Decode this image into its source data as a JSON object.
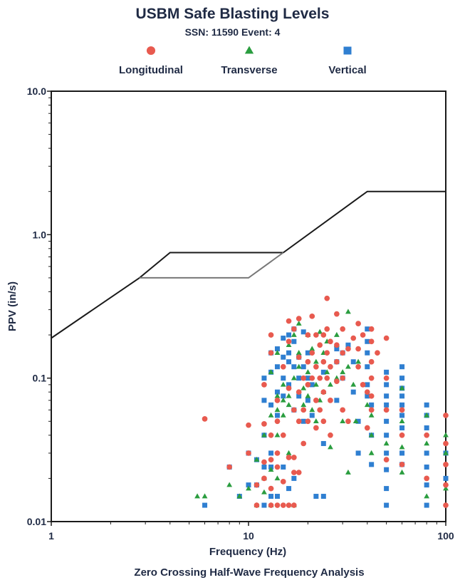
{
  "chart_data": {
    "type": "scatter",
    "title": "USBM Safe Blasting Levels",
    "subtitle": "SSN: 11590 Event: 4",
    "xlabel": "Frequency (Hz)",
    "ylabel": "PPV (in/s)",
    "footer": "Zero Crossing Half-Wave Frequency Analysis",
    "x_scale": "log",
    "y_scale": "log",
    "xlim": [
      1,
      100
    ],
    "ylim": [
      0.01,
      10.0
    ],
    "x_ticks": [
      "1",
      "10",
      "100"
    ],
    "y_ticks": [
      "0.01",
      "0.1",
      "1.0",
      "10.0"
    ],
    "grid": false,
    "legend_position": "top",
    "colors": {
      "longitudinal": "#e85a4f",
      "transverse": "#2a9d3f",
      "vertical": "#2f7fd1",
      "axis": "#1a1a1a",
      "text": "#1f2a44"
    },
    "limit_curves": [
      {
        "points": [
          [
            1,
            0.19
          ],
          [
            2.8,
            0.5
          ],
          [
            4,
            0.75
          ],
          [
            15,
            0.75
          ],
          [
            40,
            2.0
          ],
          [
            100,
            2.0
          ]
        ],
        "color": "#1a1a1a"
      },
      {
        "points": [
          [
            2.8,
            0.5
          ],
          [
            10,
            0.5
          ],
          [
            15,
            0.75
          ]
        ],
        "color": "#777777"
      }
    ],
    "series": [
      {
        "name": "Longitudinal",
        "marker": "circle",
        "color": "#e85a4f",
        "points": [
          [
            6,
            0.052
          ],
          [
            8,
            0.024
          ],
          [
            10,
            0.047
          ],
          [
            10,
            0.03
          ],
          [
            11,
            0.018
          ],
          [
            11,
            0.013
          ],
          [
            12,
            0.09
          ],
          [
            12,
            0.048
          ],
          [
            12,
            0.026
          ],
          [
            12,
            0.02
          ],
          [
            13,
            0.2
          ],
          [
            13,
            0.15
          ],
          [
            13,
            0.04
          ],
          [
            13,
            0.027
          ],
          [
            13,
            0.017
          ],
          [
            13,
            0.013
          ],
          [
            14,
            0.07
          ],
          [
            14,
            0.05
          ],
          [
            14,
            0.03
          ],
          [
            14,
            0.024
          ],
          [
            14,
            0.013
          ],
          [
            15,
            0.12
          ],
          [
            15,
            0.04
          ],
          [
            15,
            0.019
          ],
          [
            15,
            0.013
          ],
          [
            16,
            0.25
          ],
          [
            16,
            0.18
          ],
          [
            16,
            0.085
          ],
          [
            16,
            0.028
          ],
          [
            16,
            0.013
          ],
          [
            17,
            0.22
          ],
          [
            17,
            0.06
          ],
          [
            17,
            0.028
          ],
          [
            17,
            0.022
          ],
          [
            17,
            0.013
          ],
          [
            18,
            0.26
          ],
          [
            18,
            0.14
          ],
          [
            18,
            0.08
          ],
          [
            18,
            0.05
          ],
          [
            18,
            0.022
          ],
          [
            19,
            0.1
          ],
          [
            19,
            0.06
          ],
          [
            19,
            0.035
          ],
          [
            20,
            0.2
          ],
          [
            20,
            0.13
          ],
          [
            20,
            0.09
          ],
          [
            20,
            0.05
          ],
          [
            21,
            0.27
          ],
          [
            21,
            0.15
          ],
          [
            21,
            0.1
          ],
          [
            22,
            0.2
          ],
          [
            22,
            0.12
          ],
          [
            22,
            0.07
          ],
          [
            22,
            0.045
          ],
          [
            23,
            0.17
          ],
          [
            23,
            0.1
          ],
          [
            23,
            0.06
          ],
          [
            24,
            0.2
          ],
          [
            24,
            0.13
          ],
          [
            24,
            0.08
          ],
          [
            24,
            0.05
          ],
          [
            25,
            0.36
          ],
          [
            25,
            0.22
          ],
          [
            25,
            0.15
          ],
          [
            25,
            0.1
          ],
          [
            26,
            0.18
          ],
          [
            26,
            0.12
          ],
          [
            26,
            0.07
          ],
          [
            26,
            0.04
          ],
          [
            28,
            0.28
          ],
          [
            28,
            0.17
          ],
          [
            28,
            0.13
          ],
          [
            28,
            0.095
          ],
          [
            30,
            0.22
          ],
          [
            30,
            0.15
          ],
          [
            30,
            0.1
          ],
          [
            30,
            0.06
          ],
          [
            32,
            0.16
          ],
          [
            32,
            0.05
          ],
          [
            34,
            0.19
          ],
          [
            36,
            0.24
          ],
          [
            36,
            0.16
          ],
          [
            36,
            0.12
          ],
          [
            38,
            0.2
          ],
          [
            38,
            0.09
          ],
          [
            40,
            0.08
          ],
          [
            40,
            0.045
          ],
          [
            42,
            0.22
          ],
          [
            42,
            0.18
          ],
          [
            42,
            0.13
          ],
          [
            42,
            0.1
          ],
          [
            42,
            0.075
          ],
          [
            42,
            0.06
          ],
          [
            45,
            0.15
          ],
          [
            50,
            0.19
          ],
          [
            50,
            0.1
          ],
          [
            50,
            0.06
          ],
          [
            50,
            0.027
          ],
          [
            60,
            0.06
          ],
          [
            60,
            0.04
          ],
          [
            60,
            0.025
          ],
          [
            80,
            0.04
          ],
          [
            80,
            0.02
          ],
          [
            100,
            0.055
          ],
          [
            100,
            0.035
          ],
          [
            100,
            0.025
          ],
          [
            100,
            0.018
          ],
          [
            100,
            0.013
          ]
        ]
      },
      {
        "name": "Transverse",
        "marker": "triangle",
        "color": "#2a9d3f",
        "points": [
          [
            5.5,
            0.015
          ],
          [
            6,
            0.015
          ],
          [
            8,
            0.018
          ],
          [
            9,
            0.015
          ],
          [
            10,
            0.017
          ],
          [
            11,
            0.013
          ],
          [
            11,
            0.027
          ],
          [
            12,
            0.04
          ],
          [
            12,
            0.02
          ],
          [
            12,
            0.016
          ],
          [
            13,
            0.11
          ],
          [
            13,
            0.055
          ],
          [
            13,
            0.023
          ],
          [
            13,
            0.013
          ],
          [
            14,
            0.15
          ],
          [
            14,
            0.075
          ],
          [
            14,
            0.06
          ],
          [
            14,
            0.04
          ],
          [
            14,
            0.02
          ],
          [
            15,
            0.09
          ],
          [
            15,
            0.07
          ],
          [
            15,
            0.055
          ],
          [
            16,
            0.17
          ],
          [
            16,
            0.075
          ],
          [
            16,
            0.065
          ],
          [
            16,
            0.03
          ],
          [
            17,
            0.2
          ],
          [
            17,
            0.1
          ],
          [
            17,
            0.013
          ],
          [
            18,
            0.24
          ],
          [
            18,
            0.15
          ],
          [
            18,
            0.12
          ],
          [
            19,
            0.085
          ],
          [
            19,
            0.065
          ],
          [
            20,
            0.2
          ],
          [
            20,
            0.11
          ],
          [
            20,
            0.075
          ],
          [
            21,
            0.16
          ],
          [
            21,
            0.06
          ],
          [
            22,
            0.13
          ],
          [
            22,
            0.09
          ],
          [
            22,
            0.05
          ],
          [
            23,
            0.21
          ],
          [
            23,
            0.07
          ],
          [
            24,
            0.15
          ],
          [
            24,
            0.08
          ],
          [
            25,
            0.18
          ],
          [
            25,
            0.11
          ],
          [
            26,
            0.09
          ],
          [
            26,
            0.033
          ],
          [
            28,
            0.2
          ],
          [
            28,
            0.17
          ],
          [
            28,
            0.1
          ],
          [
            30,
            0.11
          ],
          [
            30,
            0.05
          ],
          [
            32,
            0.29
          ],
          [
            32,
            0.12
          ],
          [
            32,
            0.022
          ],
          [
            34,
            0.09
          ],
          [
            35,
            0.05
          ],
          [
            36,
            0.13
          ],
          [
            40,
            0.065
          ],
          [
            42,
            0.055
          ],
          [
            42,
            0.04
          ],
          [
            42,
            0.03
          ],
          [
            50,
            0.035
          ],
          [
            60,
            0.085
          ],
          [
            60,
            0.05
          ],
          [
            60,
            0.033
          ],
          [
            60,
            0.022
          ],
          [
            80,
            0.055
          ],
          [
            80,
            0.035
          ],
          [
            80,
            0.015
          ],
          [
            100,
            0.04
          ],
          [
            100,
            0.03
          ],
          [
            100,
            0.017
          ]
        ]
      },
      {
        "name": "Vertical",
        "marker": "square",
        "color": "#2f7fd1",
        "points": [
          [
            6,
            0.013
          ],
          [
            8,
            0.024
          ],
          [
            9,
            0.015
          ],
          [
            10,
            0.03
          ],
          [
            10,
            0.018
          ],
          [
            11,
            0.027
          ],
          [
            11,
            0.018
          ],
          [
            12,
            0.1
          ],
          [
            12,
            0.07
          ],
          [
            12,
            0.04
          ],
          [
            12,
            0.024
          ],
          [
            12,
            0.013
          ],
          [
            13,
            0.15
          ],
          [
            13,
            0.11
          ],
          [
            13,
            0.065
          ],
          [
            13,
            0.03
          ],
          [
            13,
            0.024
          ],
          [
            13,
            0.015
          ],
          [
            14,
            0.16
          ],
          [
            14,
            0.12
          ],
          [
            14,
            0.08
          ],
          [
            14,
            0.055
          ],
          [
            14,
            0.015
          ],
          [
            15,
            0.19
          ],
          [
            15,
            0.14
          ],
          [
            15,
            0.1
          ],
          [
            15,
            0.075
          ],
          [
            15,
            0.024
          ],
          [
            16,
            0.2
          ],
          [
            16,
            0.15
          ],
          [
            16,
            0.13
          ],
          [
            16,
            0.09
          ],
          [
            16,
            0.017
          ],
          [
            17,
            0.22
          ],
          [
            17,
            0.18
          ],
          [
            17,
            0.12
          ],
          [
            17,
            0.06
          ],
          [
            17,
            0.02
          ],
          [
            18,
            0.14
          ],
          [
            18,
            0.1
          ],
          [
            18,
            0.075
          ],
          [
            19,
            0.21
          ],
          [
            19,
            0.12
          ],
          [
            19,
            0.05
          ],
          [
            20,
            0.15
          ],
          [
            20,
            0.1
          ],
          [
            20,
            0.07
          ],
          [
            21,
            0.09
          ],
          [
            21,
            0.055
          ],
          [
            22,
            0.015
          ],
          [
            24,
            0.11
          ],
          [
            24,
            0.035
          ],
          [
            24,
            0.015
          ],
          [
            28,
            0.16
          ],
          [
            28,
            0.13
          ],
          [
            28,
            0.07
          ],
          [
            30,
            0.15
          ],
          [
            30,
            0.1
          ],
          [
            32,
            0.17
          ],
          [
            34,
            0.13
          ],
          [
            34,
            0.08
          ],
          [
            36,
            0.05
          ],
          [
            36,
            0.03
          ],
          [
            40,
            0.22
          ],
          [
            40,
            0.18
          ],
          [
            40,
            0.15
          ],
          [
            40,
            0.12
          ],
          [
            40,
            0.09
          ],
          [
            40,
            0.075
          ],
          [
            42,
            0.065
          ],
          [
            42,
            0.04
          ],
          [
            42,
            0.025
          ],
          [
            50,
            0.11
          ],
          [
            50,
            0.09
          ],
          [
            50,
            0.075
          ],
          [
            50,
            0.065
          ],
          [
            50,
            0.05
          ],
          [
            50,
            0.04
          ],
          [
            50,
            0.03
          ],
          [
            50,
            0.023
          ],
          [
            50,
            0.017
          ],
          [
            50,
            0.013
          ],
          [
            60,
            0.12
          ],
          [
            60,
            0.1
          ],
          [
            60,
            0.085
          ],
          [
            60,
            0.075
          ],
          [
            60,
            0.065
          ],
          [
            60,
            0.055
          ],
          [
            60,
            0.045
          ],
          [
            60,
            0.03
          ],
          [
            60,
            0.025
          ],
          [
            80,
            0.065
          ],
          [
            80,
            0.055
          ],
          [
            80,
            0.045
          ],
          [
            80,
            0.03
          ],
          [
            80,
            0.024
          ],
          [
            80,
            0.018
          ],
          [
            80,
            0.013
          ],
          [
            100,
            0.03
          ],
          [
            100,
            0.02
          ]
        ]
      }
    ]
  }
}
